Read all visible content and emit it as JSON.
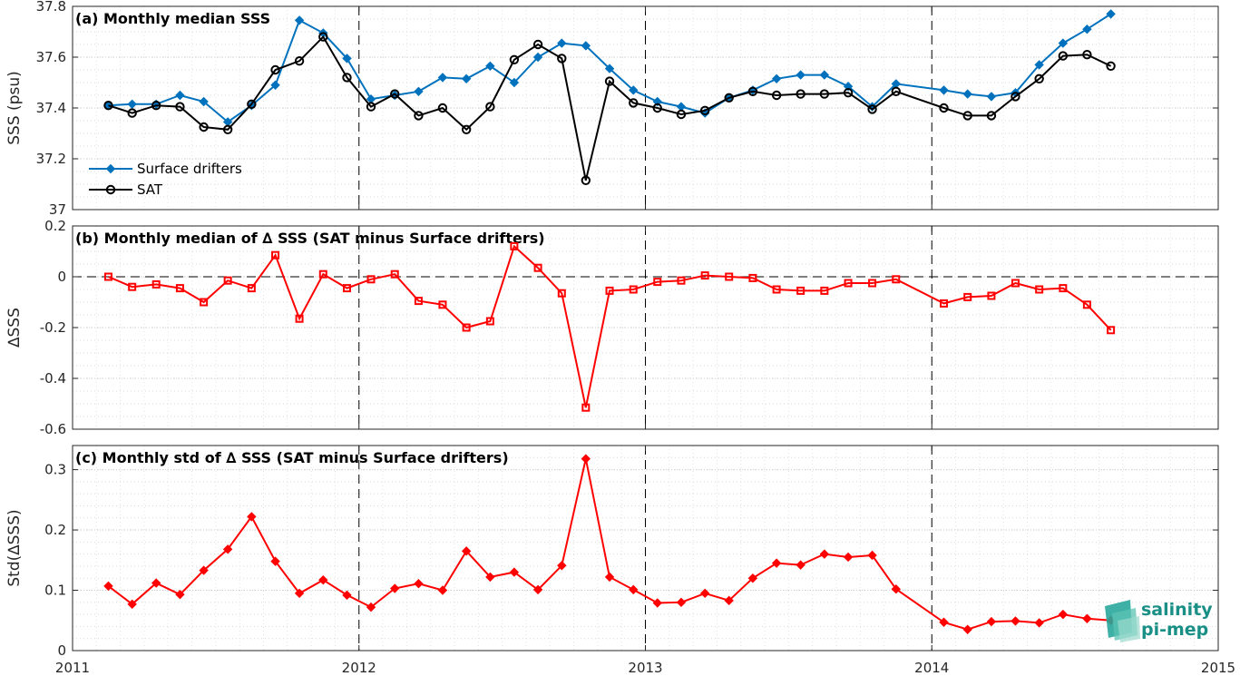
{
  "chart_data": [
    {
      "type": "line",
      "title": "(a) Monthly median SSS",
      "ylabel": "SSS (psu)",
      "ylim": [
        37.0,
        37.8
      ],
      "yticks": [
        37,
        37.2,
        37.4,
        37.6,
        37.8
      ],
      "yticklabels": [
        "37",
        "37.2",
        "37.4",
        "37.6",
        "37.8"
      ],
      "xlim": [
        2011,
        2015
      ],
      "grid": true,
      "legend_position": "bottom-left",
      "x": [
        2011.125,
        2011.208,
        2011.292,
        2011.375,
        2011.458,
        2011.542,
        2011.625,
        2011.708,
        2011.792,
        2011.875,
        2011.958,
        2012.042,
        2012.125,
        2012.208,
        2012.292,
        2012.375,
        2012.458,
        2012.542,
        2012.625,
        2012.708,
        2012.792,
        2012.875,
        2012.958,
        2013.042,
        2013.125,
        2013.208,
        2013.292,
        2013.375,
        2013.458,
        2013.542,
        2013.625,
        2013.708,
        2013.792,
        2013.875,
        2014.042,
        2014.125,
        2014.208,
        2014.292,
        2014.375,
        2014.458,
        2014.542,
        2014.625
      ],
      "series": [
        {
          "name": "Surface drifters",
          "color": "#0072bd",
          "marker": "diamond",
          "values": [
            37.41,
            37.415,
            37.415,
            37.45,
            37.425,
            37.345,
            37.41,
            37.49,
            37.745,
            37.695,
            37.595,
            37.435,
            37.45,
            37.465,
            37.52,
            37.515,
            37.565,
            37.5,
            37.6,
            37.655,
            37.645,
            37.555,
            37.47,
            37.425,
            37.405,
            37.38,
            37.44,
            37.47,
            37.515,
            37.53,
            37.53,
            37.485,
            37.405,
            37.495,
            37.47,
            37.455,
            37.445,
            37.46,
            37.57,
            37.655,
            37.71,
            37.77
          ]
        },
        {
          "name": "SAT",
          "color": "#000000",
          "marker": "circle",
          "values": [
            37.41,
            37.38,
            37.41,
            37.405,
            37.325,
            37.315,
            37.415,
            37.55,
            37.585,
            37.68,
            37.52,
            37.405,
            37.455,
            37.37,
            37.4,
            37.315,
            37.405,
            37.59,
            37.65,
            37.595,
            37.115,
            37.505,
            37.42,
            37.4,
            37.375,
            37.39,
            37.44,
            37.465,
            37.45,
            37.455,
            37.455,
            37.46,
            37.395,
            37.465,
            37.4,
            37.37,
            37.37,
            37.445,
            37.515,
            37.605,
            37.61,
            37.565
          ]
        }
      ]
    },
    {
      "type": "line",
      "title": "(b) Monthly median of ∆ SSS (SAT minus Surface drifters)",
      "ylabel": "∆SSS",
      "ylim": [
        -0.6,
        0.2
      ],
      "yticks": [
        -0.6,
        -0.4,
        -0.2,
        0,
        0.2
      ],
      "yticklabels": [
        "-0.6",
        "-0.4",
        "-0.2",
        "0",
        "0.2"
      ],
      "xlim": [
        2011,
        2015
      ],
      "grid": true,
      "x": [
        2011.125,
        2011.208,
        2011.292,
        2011.375,
        2011.458,
        2011.542,
        2011.625,
        2011.708,
        2011.792,
        2011.875,
        2011.958,
        2012.042,
        2012.125,
        2012.208,
        2012.292,
        2012.375,
        2012.458,
        2012.542,
        2012.625,
        2012.708,
        2012.792,
        2012.875,
        2012.958,
        2013.042,
        2013.125,
        2013.208,
        2013.292,
        2013.375,
        2013.458,
        2013.542,
        2013.625,
        2013.708,
        2013.792,
        2013.875,
        2014.042,
        2014.125,
        2014.208,
        2014.292,
        2014.375,
        2014.458,
        2014.542,
        2014.625
      ],
      "series": [
        {
          "color": "#ff0000",
          "marker": "square",
          "values": [
            0.0,
            -0.04,
            -0.03,
            -0.045,
            -0.1,
            -0.015,
            -0.045,
            0.085,
            -0.165,
            0.01,
            -0.045,
            -0.01,
            0.01,
            -0.095,
            -0.11,
            -0.2,
            -0.175,
            0.12,
            0.035,
            -0.065,
            -0.515,
            -0.055,
            -0.05,
            -0.02,
            -0.015,
            0.005,
            0.0,
            -0.005,
            -0.05,
            -0.055,
            -0.055,
            -0.025,
            -0.025,
            -0.01,
            -0.105,
            -0.08,
            -0.075,
            -0.025,
            -0.05,
            -0.045,
            -0.11,
            -0.21
          ]
        }
      ]
    },
    {
      "type": "line",
      "title": "(c) Monthly std of ∆ SSS (SAT minus Surface drifters)",
      "ylabel": "Std(∆SSS)",
      "ylim": [
        0,
        0.34
      ],
      "yticks": [
        0,
        0.1,
        0.2,
        0.3
      ],
      "yticklabels": [
        "0",
        "0.1",
        "0.2",
        "0.3"
      ],
      "xlim": [
        2011,
        2015
      ],
      "xticks": [
        2011,
        2012,
        2013,
        2014,
        2015
      ],
      "xticklabels": [
        "2011",
        "2012",
        "2013",
        "2014",
        "2015"
      ],
      "grid": true,
      "x": [
        2011.125,
        2011.208,
        2011.292,
        2011.375,
        2011.458,
        2011.542,
        2011.625,
        2011.708,
        2011.792,
        2011.875,
        2011.958,
        2012.042,
        2012.125,
        2012.208,
        2012.292,
        2012.375,
        2012.458,
        2012.542,
        2012.625,
        2012.708,
        2012.792,
        2012.875,
        2012.958,
        2013.042,
        2013.125,
        2013.208,
        2013.292,
        2013.375,
        2013.458,
        2013.542,
        2013.625,
        2013.708,
        2013.792,
        2013.875,
        2014.042,
        2014.125,
        2014.208,
        2014.292,
        2014.375,
        2014.458,
        2014.542,
        2014.625
      ],
      "series": [
        {
          "color": "#ff0000",
          "marker": "diamond",
          "values": [
            0.107,
            0.077,
            0.112,
            0.093,
            0.133,
            0.168,
            0.222,
            0.148,
            0.095,
            0.117,
            0.092,
            0.072,
            0.103,
            0.111,
            0.1,
            0.165,
            0.122,
            0.13,
            0.101,
            0.141,
            0.318,
            0.122,
            0.101,
            0.079,
            0.08,
            0.095,
            0.083,
            0.12,
            0.145,
            0.142,
            0.16,
            0.155,
            0.158,
            0.102,
            0.047,
            0.035,
            0.048,
            0.049,
            0.046,
            0.06,
            0.053,
            0.05
          ]
        }
      ]
    }
  ],
  "logo": {
    "line1": "salinity",
    "line2": "pi-mep"
  }
}
